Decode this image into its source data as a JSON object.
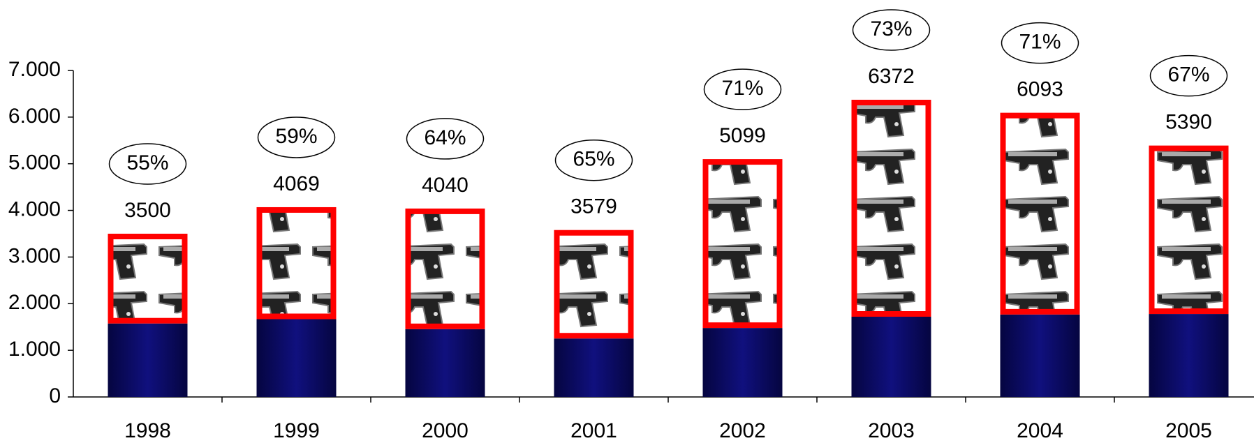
{
  "chart_data": {
    "type": "stacked-bar",
    "categories": [
      "1998",
      "1999",
      "2000",
      "2001",
      "2002",
      "2003",
      "2004",
      "2005"
    ],
    "series": [
      {
        "color": "#0a0a6e",
        "values": [
          1575,
          1668,
          1454,
          1253,
          1479,
          1720,
          1767,
          1779
        ]
      },
      {
        "color": "#ff0000",
        "values": [
          1925,
          2401,
          2586,
          2326,
          3620,
          4652,
          4326,
          3611
        ]
      }
    ],
    "totals": [
      3500,
      4069,
      4040,
      3579,
      5099,
      6372,
      6093,
      5390
    ],
    "shares": [
      55,
      59,
      64,
      65,
      71,
      73,
      71,
      67
    ],
    "share_labels": [
      "55%",
      "59%",
      "64%",
      "65%",
      "71%",
      "73%",
      "71%",
      "67%"
    ],
    "ylim": [
      0,
      7000
    ],
    "yticks": [
      0,
      {
        "value": 1000,
        "label": "1.000"
      },
      {
        "value": 2000,
        "label": "2.000"
      },
      {
        "value": 3000,
        "label": "3.000"
      },
      {
        "value": 4000,
        "label": "4.000"
      },
      {
        "value": 5000,
        "label": "5.000"
      },
      {
        "value": 6000,
        "label": "6.000"
      },
      {
        "value": 7000,
        "label": "7.000"
      }
    ]
  }
}
